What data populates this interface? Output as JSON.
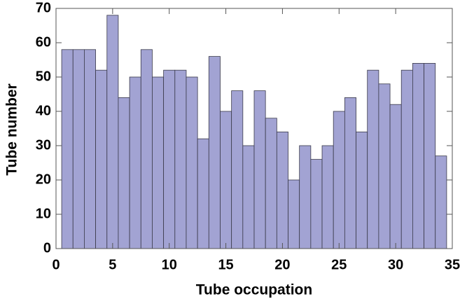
{
  "chart_data": {
    "type": "histogram",
    "xlabel": "Tube occupation",
    "ylabel": "Tube number",
    "bins": [
      0.5,
      1.5,
      2.5,
      3.5,
      4.5,
      5.5,
      6.5,
      7.5,
      8.5,
      9.5,
      10.5,
      11.5,
      12.5,
      13.5,
      14.5,
      15.5,
      16.5,
      17.5,
      18.5,
      19.5,
      20.5,
      21.5,
      22.5,
      23.5,
      24.5,
      25.5,
      26.5,
      27.5,
      28.5,
      29.5,
      30.5,
      31.5,
      32.5,
      33.5,
      34.5
    ],
    "values": [
      58,
      58,
      58,
      52,
      68,
      44,
      50,
      58,
      50,
      52,
      52,
      50,
      32,
      56,
      40,
      46,
      30,
      46,
      38,
      34,
      20,
      30,
      26,
      30,
      40,
      44,
      34,
      52,
      48,
      42,
      52,
      54,
      54,
      27
    ],
    "color": "#a2a3d3",
    "xlim": [
      0,
      35
    ],
    "xticks": [
      0,
      5,
      10,
      15,
      20,
      25,
      30,
      35
    ],
    "ylim": [
      0,
      70
    ],
    "yticks": [
      0,
      10,
      20,
      30,
      40,
      50,
      60,
      70
    ]
  }
}
